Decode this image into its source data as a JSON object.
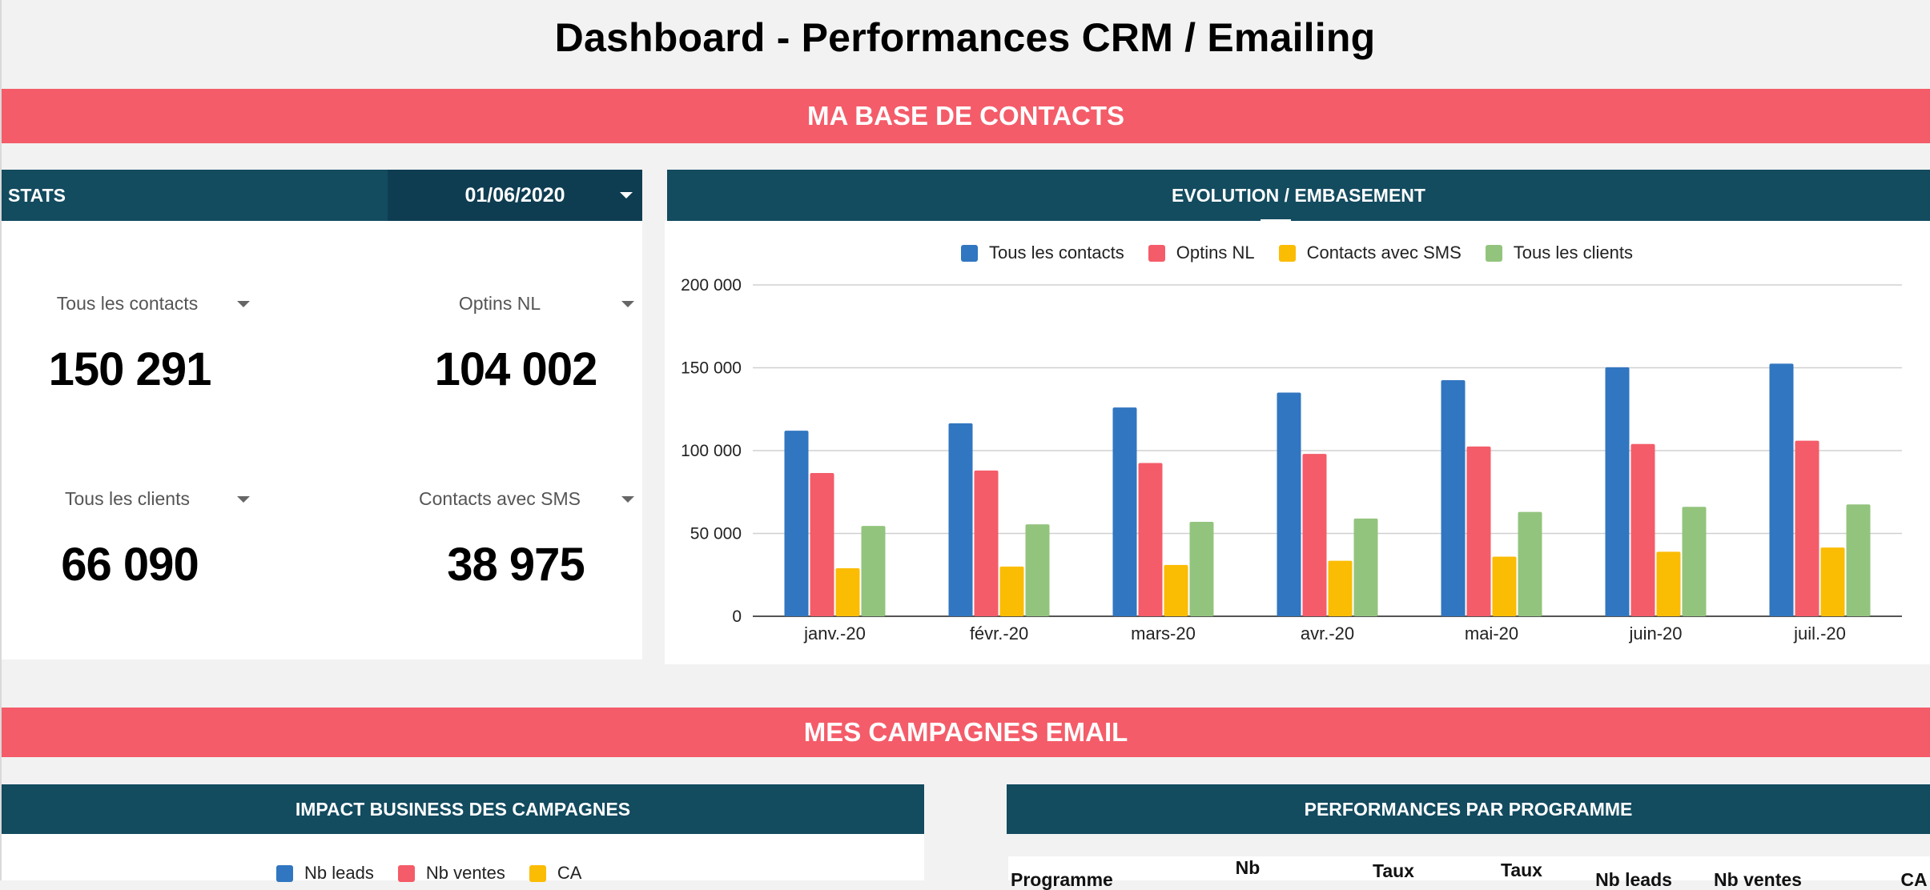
{
  "page_title": "Dashboard - Performances CRM / Emailing",
  "sections": {
    "contacts_base": "MA BASE DE CONTACTS",
    "email_campaigns": "MES CAMPAGNES EMAIL"
  },
  "stats": {
    "header_label": "STATS",
    "date_value": "01/06/2020",
    "kpis": [
      {
        "label": "Tous les contacts",
        "value": "150 291"
      },
      {
        "label": "Optins NL",
        "value": "104 002"
      },
      {
        "label": "Tous les clients",
        "value": "66 090"
      },
      {
        "label": "Contacts avec SMS",
        "value": "38 975"
      }
    ]
  },
  "evolution": {
    "header": "EVOLUTION / EMBASEMENT"
  },
  "chart_data": {
    "type": "bar",
    "categories": [
      "janv.-20",
      "févr.-20",
      "mars-20",
      "avr.-20",
      "mai-20",
      "juin-20",
      "juil.-20"
    ],
    "series": [
      {
        "name": "Tous les contacts",
        "color": "#3176c0",
        "values": [
          112000,
          116500,
          126000,
          135000,
          142500,
          150291,
          152500
        ]
      },
      {
        "name": "Optins NL",
        "color": "#f45c69",
        "values": [
          86500,
          88000,
          92500,
          98000,
          102500,
          104002,
          106000
        ]
      },
      {
        "name": "Contacts avec SMS",
        "color": "#fbbc04",
        "values": [
          29000,
          30000,
          31000,
          33500,
          36000,
          38975,
          41500
        ]
      },
      {
        "name": "Tous les clients",
        "color": "#93c47d",
        "values": [
          54500,
          55500,
          57000,
          59000,
          63000,
          66090,
          67500
        ]
      }
    ],
    "ylim": [
      0,
      200000
    ],
    "yticks": [
      0,
      50000,
      100000,
      150000,
      200000
    ],
    "ytick_labels": [
      "0",
      "50 000",
      "100 000",
      "150 000",
      "200 000"
    ],
    "grid": true,
    "legend_position": "top"
  },
  "campaign_impact": {
    "header": "IMPACT BUSINESS DES CAMPAGNES",
    "legend": [
      {
        "name": "Nb leads",
        "color": "#3176c0"
      },
      {
        "name": "Nb ventes",
        "color": "#f45c69"
      },
      {
        "name": "CA",
        "color": "#fbbc04"
      }
    ]
  },
  "program_performance": {
    "header": "PERFORMANCES PAR PROGRAMME",
    "columns": [
      "Programme",
      "Nb",
      "Taux",
      "Taux",
      "Nb leads",
      "Nb ventes",
      "CA"
    ]
  },
  "colors": {
    "banner": "#f45c69",
    "dark_header": "#134b5f",
    "date_box": "#0e3d52"
  }
}
